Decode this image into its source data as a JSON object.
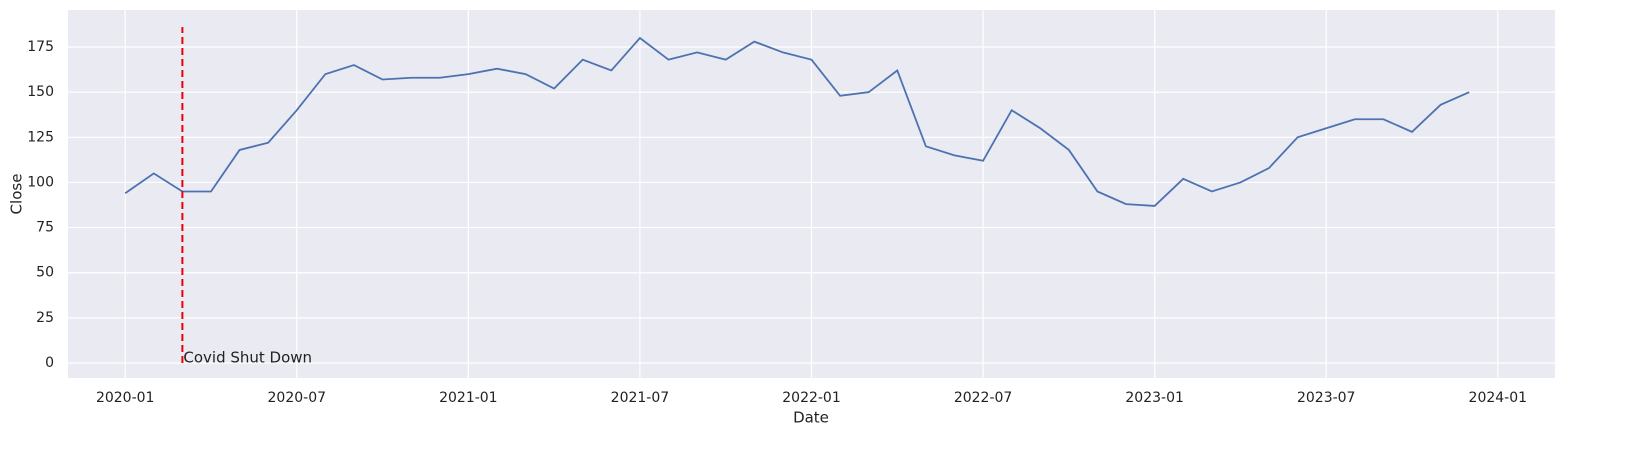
{
  "chart_data": {
    "type": "line",
    "x_label": "Date",
    "y_label": "Close",
    "x": [
      "2020-01",
      "2020-02",
      "2020-03",
      "2020-04",
      "2020-05",
      "2020-06",
      "2020-07",
      "2020-08",
      "2020-09",
      "2020-10",
      "2020-11",
      "2020-12",
      "2021-01",
      "2021-02",
      "2021-03",
      "2021-04",
      "2021-05",
      "2021-06",
      "2021-07",
      "2021-08",
      "2021-09",
      "2021-10",
      "2021-11",
      "2021-12",
      "2022-01",
      "2022-02",
      "2022-03",
      "2022-04",
      "2022-05",
      "2022-06",
      "2022-07",
      "2022-08",
      "2022-09",
      "2022-10",
      "2022-11",
      "2022-12",
      "2023-01",
      "2023-02",
      "2023-03",
      "2023-04",
      "2023-05",
      "2023-06",
      "2023-07",
      "2023-08",
      "2023-09",
      "2023-10",
      "2023-11",
      "2023-12"
    ],
    "series": [
      {
        "color": "#4c72b0",
        "values": [
          94,
          105,
          95,
          95,
          118,
          122,
          140,
          160,
          165,
          157,
          158,
          158,
          160,
          163,
          160,
          152,
          168,
          162,
          180,
          168,
          172,
          168,
          178,
          172,
          168,
          148,
          150,
          162,
          120,
          115,
          112,
          140,
          130,
          118,
          95,
          88,
          87,
          102,
          95,
          100,
          108,
          125,
          130,
          135,
          135,
          128,
          143,
          150
        ]
      }
    ],
    "xlim": [
      "2019-11",
      "2024-03"
    ],
    "xticks": [
      "2020-01",
      "2020-07",
      "2021-01",
      "2021-07",
      "2022-01",
      "2022-07",
      "2023-01",
      "2023-07",
      "2024-01"
    ],
    "ylim": [
      -8.3,
      195.5
    ],
    "yticks": [
      0,
      25,
      50,
      75,
      100,
      125,
      150,
      175
    ],
    "grid": true,
    "vline": {
      "x": "2020-03",
      "y": [
        0,
        186
      ],
      "color": "#e8000b",
      "label": "Covid Shut Down"
    }
  }
}
